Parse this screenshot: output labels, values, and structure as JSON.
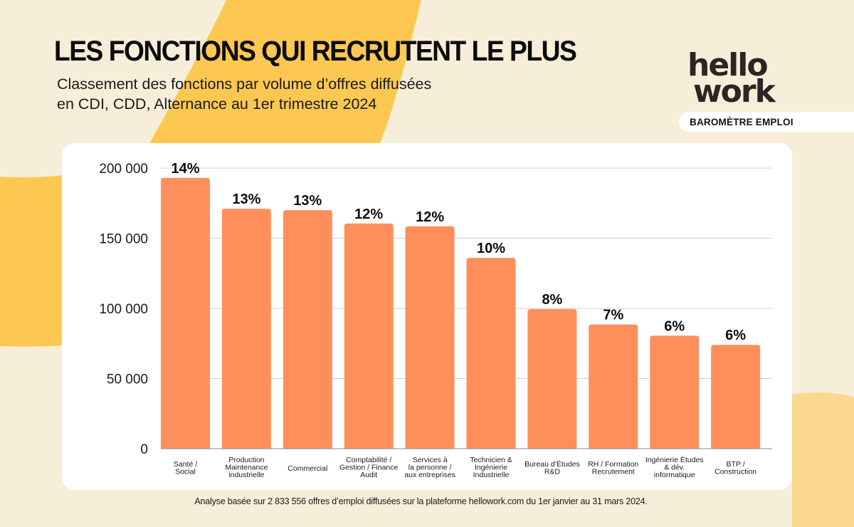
{
  "header": {
    "title": "LES FONCTIONS QUI RECRUTENT LE PLUS",
    "subtitle_lines": [
      "Classement des fonctions par volume d’offres diffusées",
      "en CDI, CDD, Alternance au 1er trimestre 2024"
    ]
  },
  "brand": {
    "logo_line1": "hello",
    "logo_line2": "work",
    "badge": "BAROMÈTRE EMPLOI"
  },
  "colors": {
    "background": "#F7EEDA",
    "accent_yellow": "#FDC852",
    "light_yellow": "#FAD88F",
    "bar": "#FF8F5A",
    "card": "#FFFFFF",
    "grid": "#CFCFCF",
    "text": "#111111"
  },
  "chart_data": {
    "type": "bar",
    "title": "LES FONCTIONS QUI RECRUTENT LE PLUS",
    "subtitle": "Classement des fonctions par volume d’offres diffusées en CDI, CDD, Alternance au 1er trimestre 2024",
    "xlabel": "",
    "ylabel": "",
    "ylim": [
      0,
      200000
    ],
    "yticks": [
      0,
      50000,
      100000,
      150000,
      200000
    ],
    "ytick_labels": [
      "0",
      "50 000",
      "100 000",
      "150 000",
      "200 000"
    ],
    "grid": true,
    "legend": "none",
    "categories": [
      [
        "Santé /",
        "Social"
      ],
      [
        "Production",
        "Maintenance",
        "industrielle"
      ],
      [
        "Commercial"
      ],
      [
        "Comptabilité /",
        "Gestion / Finance",
        "Audit"
      ],
      [
        "Services à",
        "la personne /",
        "aux entreprises"
      ],
      [
        "Technicien &",
        "Ingénierie",
        "Industrielle"
      ],
      [
        "Bureau d’Études",
        "R&D"
      ],
      [
        "RH / Formation",
        "Recrutement"
      ],
      [
        "Ingénierie Études",
        "& dév.",
        "informatique"
      ],
      [
        "BTP /",
        "Construction"
      ]
    ],
    "values": [
      193000,
      171000,
      170000,
      160500,
      158500,
      136000,
      99500,
      88500,
      80500,
      74000
    ],
    "data_labels": [
      "14%",
      "13%",
      "13%",
      "12%",
      "12%",
      "10%",
      "8%",
      "7%",
      "6%",
      "6%"
    ]
  },
  "footer": {
    "note": "Analyse basée sur 2 833 556 offres d’emploi diffusées sur la plateforme hellowork.com du 1er janvier au 31 mars 2024."
  }
}
